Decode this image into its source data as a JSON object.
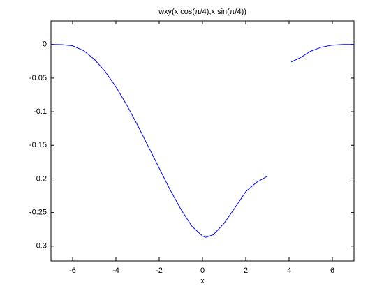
{
  "chart_data": {
    "type": "line",
    "title": "wxy(x cos(π/4),x sin(π/4))",
    "x_label": "x",
    "x": [
      -7,
      -6.5,
      -6,
      -5.5,
      -5,
      -4.5,
      -4,
      -3.5,
      -3,
      -2.5,
      -2,
      -1.5,
      -1,
      -0.5,
      0,
      0.15,
      0.5,
      1,
      1.5,
      2,
      2.5,
      3,
      3.5,
      4.1,
      4.5,
      5,
      5.5,
      6,
      6.5,
      7
    ],
    "values": [
      0,
      -0.0003,
      -0.002,
      -0.009,
      -0.022,
      -0.04,
      -0.063,
      -0.09,
      -0.12,
      -0.152,
      -0.184,
      -0.216,
      -0.245,
      -0.27,
      -0.285,
      -0.287,
      -0.283,
      -0.266,
      -0.243,
      -0.219,
      -0.205,
      -0.196,
      null,
      -0.026,
      -0.02,
      -0.01,
      -0.004,
      -0.001,
      0,
      0
    ],
    "color": "#0000ff",
    "xlim": [
      -7,
      7
    ],
    "xticks": [
      -6,
      -4,
      -2,
      0,
      2,
      4,
      6
    ],
    "ylim": [
      -0.322,
      0.035
    ],
    "yticks": [
      -0.3,
      -0.25,
      -0.2,
      -0.15,
      -0.1,
      -0.05,
      0
    ],
    "grid": false
  }
}
